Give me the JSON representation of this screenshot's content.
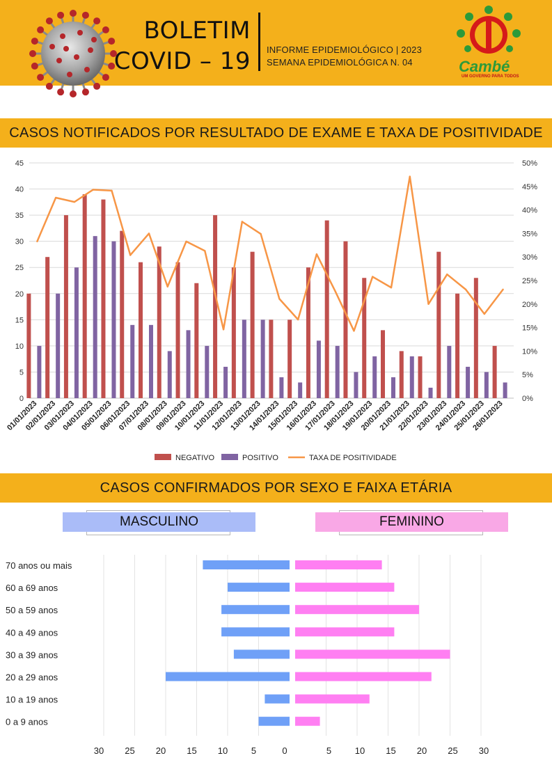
{
  "header": {
    "title_line1": "BOLETIM",
    "title_line2": "COVID – 19",
    "subtitle_line1": "INFORME EPIDEMIOLÓGICO | 2023",
    "subtitle_line2": "SEMANA EPIDEMIOLÓGICA  N. 04",
    "logo_name": "Cambé",
    "logo_tagline": "UM GOVERNO PARA TODOS",
    "accent_color": "#f4b01b"
  },
  "sections": {
    "chart1_title": "CASOS NOTIFICADOS POR RESULTADO DE EXAME E TAXA DE POSITIVIDADE",
    "chart2_title": "CASOS CONFIRMADOS POR SEXO E FAIXA ETÁRIA",
    "male_label": "MASCULINO",
    "female_label": "FEMININO"
  },
  "chart_data": [
    {
      "type": "bar",
      "categories": [
        "01/01/2023",
        "02/01/2023",
        "03/01/2023",
        "04/01/2023",
        "05/01/2023",
        "06/01/2023",
        "07/01/2023",
        "08/01/2023",
        "09/01/2023",
        "10/01/2023",
        "11/01/2023",
        "12/01/2023",
        "13/01/2023",
        "14/01/2023",
        "15/01/2023",
        "16/01/2023",
        "17/01/2023",
        "18/01/2023",
        "19/01/2023",
        "20/01/2023",
        "21/01/2023",
        "22/01/2023",
        "23/01/2023",
        "24/01/2023",
        "25/01/2023",
        "26/01/2023"
      ],
      "series": [
        {
          "name": "NEGATIVO",
          "type": "bar",
          "axis": "left",
          "color": "#c0504d",
          "values": [
            20,
            27,
            35,
            39,
            38,
            32,
            26,
            29,
            26,
            22,
            35,
            25,
            28,
            15,
            15,
            25,
            34,
            30,
            23,
            13,
            9,
            8,
            28,
            20,
            23,
            10
          ]
        },
        {
          "name": "POSITIVO",
          "type": "bar",
          "axis": "left",
          "color": "#8064a2",
          "values": [
            10,
            20,
            25,
            31,
            30,
            14,
            14,
            9,
            13,
            10,
            6,
            15,
            15,
            4,
            3,
            11,
            10,
            5,
            8,
            4,
            8,
            2,
            10,
            6,
            5,
            3
          ]
        },
        {
          "name": "TAXA DE POSITIVIDADE",
          "type": "line",
          "axis": "right",
          "color": "#f79646",
          "values": [
            33.3,
            42.6,
            41.7,
            44.3,
            44.1,
            30.4,
            35.0,
            23.7,
            33.3,
            31.3,
            14.6,
            37.5,
            34.9,
            21.1,
            16.7,
            30.6,
            22.7,
            14.3,
            25.8,
            23.5,
            47.1,
            20.0,
            26.3,
            23.1,
            17.9,
            23.1
          ]
        }
      ],
      "ylim": [
        0,
        45
      ],
      "yticks": [
        "0",
        "5",
        "10",
        "15",
        "20",
        "25",
        "30",
        "35",
        "40",
        "45"
      ],
      "y2lim": [
        0,
        50
      ],
      "y2ticks": [
        "0%",
        "5%",
        "10%",
        "15%",
        "20%",
        "25%",
        "30%",
        "35%",
        "40%",
        "45%",
        "50%"
      ],
      "grid": true,
      "legend_position": "bottom"
    },
    {
      "type": "bar",
      "orientation": "horizontal",
      "categories": [
        "70 anos ou mais",
        "60 a 69 anos",
        "50 a 59 anos",
        "40 a 49 anos",
        "30 a 39 anos",
        "20 a 29 anos",
        "10 a 19 anos",
        "0 a 9 anos"
      ],
      "series": [
        {
          "name": "MASCULINO",
          "color": "#6fa0f7",
          "values": [
            14,
            10,
            11,
            11,
            9,
            20,
            4,
            5
          ]
        },
        {
          "name": "FEMININO",
          "color": "#ff7ff2",
          "values": [
            14,
            16,
            20,
            16,
            25,
            22,
            12,
            4
          ]
        }
      ],
      "xticks_left": [
        "30",
        "25",
        "20",
        "15",
        "10",
        "5",
        "0"
      ],
      "xticks_right": [
        "5",
        "10",
        "15",
        "20",
        "25",
        "30"
      ],
      "xlim": [
        0,
        30
      ],
      "grid": true
    }
  ]
}
